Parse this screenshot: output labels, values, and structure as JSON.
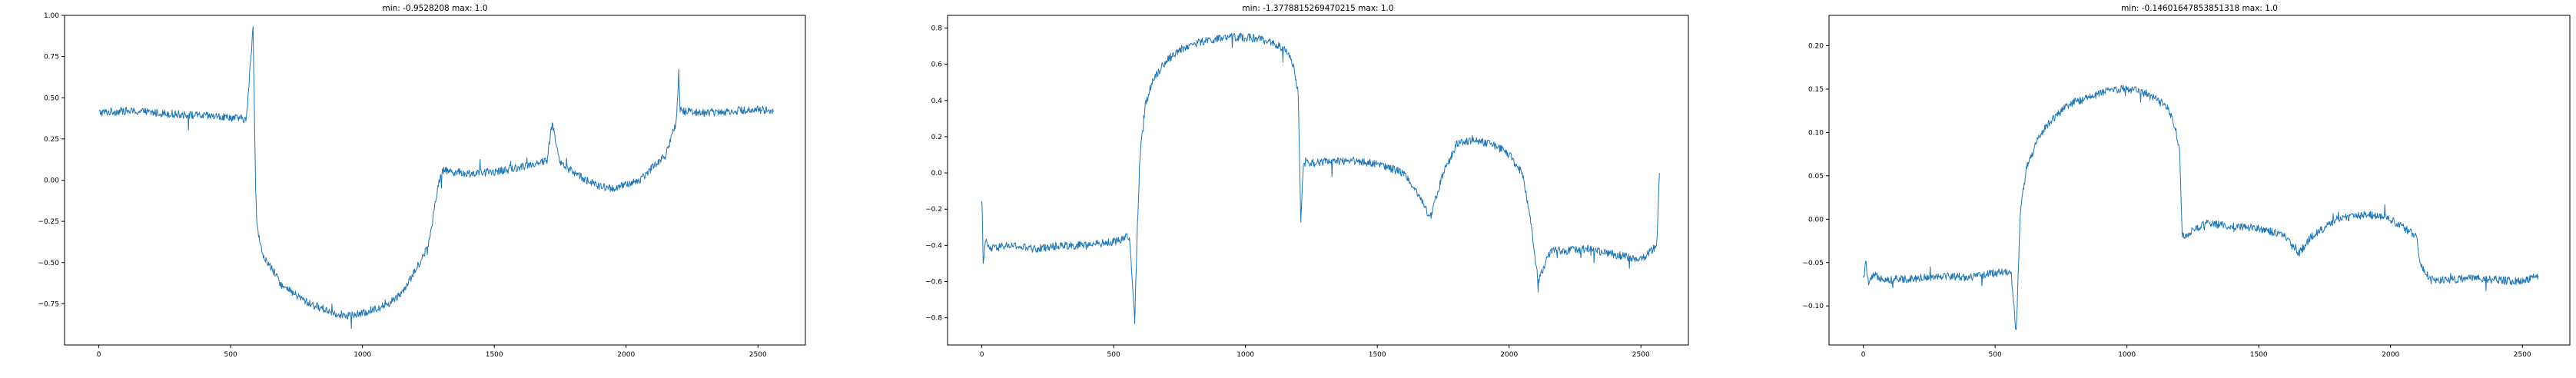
{
  "colors": {
    "line": "#1f77b4",
    "axis": "#000000",
    "background": "#ffffff"
  },
  "chart_data": [
    {
      "type": "line",
      "title": "min: -0.9528208 max: 1.0",
      "xlim": [
        -130,
        2680
      ],
      "ylim": [
        -1.0,
        1.0
      ],
      "xticks": [
        0,
        500,
        1000,
        1500,
        2000,
        2500
      ],
      "yticks": [
        -0.75,
        -0.5,
        -0.25,
        0.0,
        0.25,
        0.5,
        0.75,
        1.0
      ],
      "xticklabels": [
        "0",
        "500",
        "1000",
        "1500",
        "2000",
        "2500"
      ],
      "yticklabels": [
        "−0.75",
        "−0.50",
        "−0.25",
        "0.00",
        "0.25",
        "0.50",
        "0.75",
        "1.00"
      ],
      "grid": false,
      "series": [
        {
          "x": [
            0,
            100,
            200,
            300,
            400,
            500,
            560,
            585,
            595,
            600,
            620,
            700,
            800,
            900,
            950,
            1000,
            1050,
            1100,
            1150,
            1200,
            1250,
            1290,
            1305,
            1400,
            1500,
            1600,
            1650,
            1700,
            1720,
            1750,
            1800,
            1850,
            1900,
            1950,
            2000,
            2050,
            2100,
            2150,
            2170,
            2190,
            2200,
            2205,
            2300,
            2400,
            2500,
            2560
          ],
          "y": [
            0.41,
            0.42,
            0.41,
            0.4,
            0.39,
            0.38,
            0.37,
            0.93,
            -0.05,
            -0.28,
            -0.45,
            -0.65,
            -0.75,
            -0.81,
            -0.82,
            -0.81,
            -0.78,
            -0.75,
            -0.68,
            -0.55,
            -0.4,
            0.0,
            0.06,
            0.04,
            0.05,
            0.08,
            0.1,
            0.12,
            0.35,
            0.1,
            0.05,
            0.0,
            -0.04,
            -0.05,
            -0.03,
            0.0,
            0.08,
            0.15,
            0.25,
            0.35,
            0.65,
            0.42,
            0.41,
            0.42,
            0.43,
            0.42
          ]
        }
      ]
    },
    {
      "type": "line",
      "title": "min: -1.3778815269470215 max: 1.0",
      "xlim": [
        -130,
        2680
      ],
      "ylim": [
        -0.95,
        0.87
      ],
      "xticks": [
        0,
        500,
        1000,
        1500,
        2000,
        2500
      ],
      "yticks": [
        -0.8,
        -0.6,
        -0.4,
        -0.2,
        0.0,
        0.2,
        0.4,
        0.6,
        0.8
      ],
      "xticklabels": [
        "0",
        "500",
        "1000",
        "1500",
        "2000",
        "2500"
      ],
      "yticklabels": [
        "−0.8",
        "−0.6",
        "−0.4",
        "−0.2",
        "0.0",
        "0.2",
        "0.4",
        "0.6",
        "0.8"
      ],
      "grid": false,
      "series": [
        {
          "x": [
            0,
            5,
            15,
            30,
            100,
            200,
            300,
            400,
            500,
            560,
            580,
            590,
            600,
            620,
            650,
            700,
            750,
            800,
            850,
            900,
            950,
            1000,
            1050,
            1100,
            1150,
            1180,
            1200,
            1210,
            1220,
            1300,
            1400,
            1500,
            1600,
            1650,
            1700,
            1750,
            1790,
            1800,
            1850,
            1900,
            1950,
            2000,
            2050,
            2080,
            2110,
            2150,
            2170,
            2200,
            2300,
            2400,
            2500,
            2560,
            2570
          ],
          "y": [
            -0.12,
            -0.48,
            -0.38,
            -0.42,
            -0.4,
            -0.42,
            -0.4,
            -0.4,
            -0.38,
            -0.35,
            -0.82,
            -0.3,
            0.1,
            0.38,
            0.52,
            0.62,
            0.68,
            0.71,
            0.73,
            0.74,
            0.75,
            0.75,
            0.74,
            0.72,
            0.68,
            0.6,
            0.45,
            -0.25,
            0.05,
            0.06,
            0.07,
            0.05,
            0.0,
            -0.1,
            -0.25,
            0.0,
            0.12,
            0.16,
            0.18,
            0.17,
            0.15,
            0.1,
            0.0,
            -0.25,
            -0.6,
            -0.45,
            -0.42,
            -0.43,
            -0.42,
            -0.45,
            -0.48,
            -0.4,
            0.0
          ]
        }
      ]
    },
    {
      "type": "line",
      "title": "min: -0.14601647853851318 max: 1.0",
      "xlim": [
        -130,
        2680
      ],
      "ylim": [
        -0.145,
        0.235
      ],
      "xticks": [
        0,
        500,
        1000,
        1500,
        2000,
        2500
      ],
      "yticks": [
        -0.1,
        -0.05,
        0.0,
        0.05,
        0.1,
        0.15,
        0.2
      ],
      "xticklabels": [
        "0",
        "500",
        "1000",
        "1500",
        "2000",
        "2500"
      ],
      "yticklabels": [
        "−0.10",
        "−0.05",
        "0.00",
        "0.05",
        "0.10",
        "0.15",
        "0.20"
      ],
      "grid": false,
      "series": [
        {
          "x": [
            0,
            10,
            20,
            40,
            100,
            200,
            300,
            400,
            500,
            560,
            580,
            595,
            600,
            620,
            660,
            700,
            750,
            800,
            850,
            900,
            950,
            1000,
            1050,
            1100,
            1150,
            1180,
            1200,
            1210,
            1300,
            1400,
            1500,
            1600,
            1650,
            1700,
            1750,
            1800,
            1850,
            1900,
            1950,
            2000,
            2050,
            2100,
            2110,
            2150,
            2200,
            2300,
            2400,
            2500,
            2560
          ],
          "y": [
            -0.07,
            -0.05,
            -0.075,
            -0.065,
            -0.07,
            -0.068,
            -0.065,
            -0.067,
            -0.062,
            -0.06,
            -0.13,
            0.0,
            0.02,
            0.06,
            0.09,
            0.11,
            0.125,
            0.135,
            0.14,
            0.145,
            0.15,
            0.15,
            0.148,
            0.14,
            0.13,
            0.11,
            0.08,
            -0.02,
            -0.005,
            -0.008,
            -0.01,
            -0.02,
            -0.04,
            -0.02,
            -0.01,
            0.0,
            0.003,
            0.005,
            0.005,
            0.0,
            -0.01,
            -0.02,
            -0.05,
            -0.07,
            -0.07,
            -0.068,
            -0.07,
            -0.072,
            -0.065
          ]
        }
      ]
    }
  ]
}
